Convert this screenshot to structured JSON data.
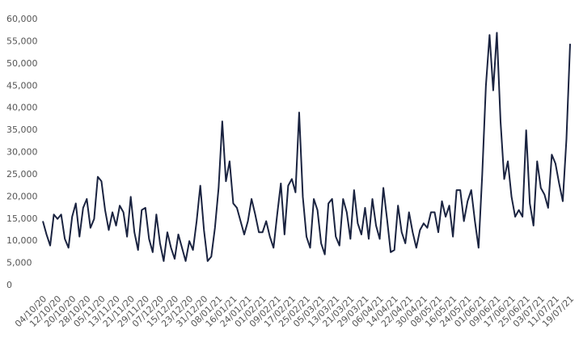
{
  "chart_data": {
    "type": "line",
    "categories": [
      "04/10/20",
      null,
      null,
      null,
      "12/10/20",
      null,
      null,
      null,
      "20/10/20",
      null,
      null,
      null,
      "28/10/20",
      null,
      null,
      null,
      "05/11/20",
      null,
      null,
      null,
      "13/11/20",
      null,
      null,
      null,
      "21/11/20",
      null,
      null,
      null,
      "29/11/20",
      null,
      null,
      null,
      "07/12/20",
      null,
      null,
      null,
      "15/12/20",
      null,
      null,
      null,
      "23/12/20",
      null,
      null,
      null,
      "31/12/20",
      null,
      null,
      null,
      "08/01/21",
      null,
      null,
      null,
      "16/01/21",
      null,
      null,
      null,
      "24/01/21",
      null,
      null,
      null,
      "01/02/21",
      null,
      null,
      null,
      "09/02/21",
      null,
      null,
      null,
      "17/02/21",
      null,
      null,
      null,
      "25/02/21",
      null,
      null,
      null,
      "05/03/21",
      null,
      null,
      null,
      "13/03/21",
      null,
      null,
      null,
      "21/03/21",
      null,
      null,
      null,
      "29/03/21",
      null,
      null,
      null,
      "06/04/21",
      null,
      null,
      null,
      "14/04/21",
      null,
      null,
      null,
      "22/04/21",
      null,
      null,
      null,
      "30/04/21",
      null,
      null,
      null,
      "08/05/21",
      null,
      null,
      null,
      "16/05/21",
      null,
      null,
      null,
      "24/05/21",
      null,
      null,
      null,
      "01/06/21",
      null,
      null,
      null,
      "09/06/21",
      null,
      null,
      null,
      "17/06/21",
      null,
      null,
      null,
      "25/06/21",
      null,
      null,
      null,
      "03/07/21",
      null,
      null,
      null,
      "11/07/21",
      null,
      null,
      null,
      "19/07/21"
    ],
    "values": [
      14500,
      11500,
      9000,
      16000,
      15000,
      16000,
      10500,
      8500,
      15500,
      18500,
      11000,
      17500,
      19500,
      13000,
      15000,
      24500,
      23500,
      17000,
      12500,
      16500,
      13500,
      18000,
      16500,
      11000,
      20000,
      12000,
      8000,
      17000,
      17500,
      10500,
      7500,
      16000,
      9500,
      5500,
      12000,
      8500,
      6000,
      11500,
      8500,
      5500,
      10000,
      8000,
      14500,
      22500,
      12500,
      5500,
      6500,
      13000,
      22000,
      37000,
      23500,
      28000,
      18500,
      17500,
      14500,
      11500,
      14500,
      19500,
      16000,
      12000,
      12000,
      14500,
      11000,
      8500,
      16000,
      23000,
      11500,
      22500,
      24000,
      21000,
      39000,
      20000,
      11000,
      8500,
      19500,
      17000,
      9500,
      7000,
      18500,
      19500,
      11000,
      9000,
      19500,
      16500,
      10500,
      21500,
      14000,
      11500,
      17500,
      10500,
      19500,
      13500,
      10500,
      22000,
      15000,
      7500,
      8000,
      18000,
      12000,
      9500,
      16500,
      12000,
      8500,
      12500,
      14000,
      13000,
      16500,
      16500,
      12000,
      19000,
      15500,
      18000,
      11000,
      21500,
      21500,
      14500,
      19000,
      21500,
      14500,
      8500,
      25000,
      45000,
      56500,
      44000,
      57000,
      37000,
      24000,
      28000,
      20000,
      15500,
      17000,
      15500,
      35000,
      18500,
      13500,
      28000,
      22000,
      20500,
      17500,
      29500,
      27500,
      23000,
      19000,
      33000,
      54500
    ],
    "color": "#1a2340",
    "ylim": [
      0,
      60000
    ],
    "yticks": [
      0,
      {
        "value": 5000,
        "label": "5,000"
      },
      {
        "value": 10000,
        "label": "10,000"
      },
      {
        "value": 15000,
        "label": "15,000"
      },
      {
        "value": 20000,
        "label": "20,000"
      },
      {
        "value": 25000,
        "label": "25,000"
      },
      {
        "value": 30000,
        "label": "30,000"
      },
      {
        "value": 35000,
        "label": "35,000"
      },
      {
        "value": 40000,
        "label": "40,000"
      },
      {
        "value": 45000,
        "label": "45,000"
      },
      {
        "value": 50000,
        "label": "50,000"
      },
      {
        "value": 55000,
        "label": "55,000"
      },
      {
        "value": 60000,
        "label": "60,000"
      }
    ],
    "grid": false
  }
}
